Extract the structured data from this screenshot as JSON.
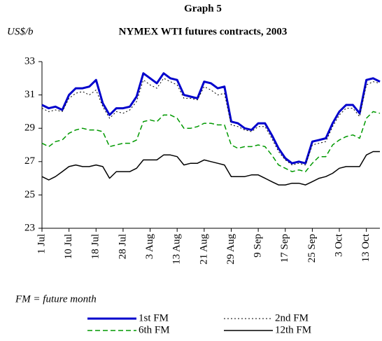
{
  "chart_data": {
    "type": "line",
    "title": "Graph 5",
    "subtitle": "NYMEX WTI futures contracts, 2003",
    "y_axis_label": "US$/b",
    "annotation": "FM = future month",
    "categories": [
      "1 Jul",
      null,
      null,
      null,
      "10 Jul",
      null,
      null,
      null,
      "18 Jul",
      null,
      null,
      null,
      "28 Jul",
      null,
      null,
      null,
      "3 Aug",
      null,
      null,
      null,
      "13 Aug",
      null,
      null,
      null,
      "21 Aug",
      null,
      null,
      null,
      "29 Aug",
      null,
      null,
      null,
      "9 Sep",
      null,
      null,
      null,
      "17 Sep",
      null,
      null,
      null,
      "25 Sep",
      null,
      null,
      null,
      "3 Oct",
      null,
      null,
      null,
      "13 Oct",
      null,
      null
    ],
    "series": [
      {
        "name": "1st FM",
        "color": "#0000cc",
        "width": 3,
        "dash": "none",
        "values": [
          30.4,
          30.2,
          30.3,
          30.1,
          31.0,
          31.4,
          31.4,
          31.5,
          31.9,
          30.5,
          29.8,
          30.2,
          30.2,
          30.3,
          30.9,
          32.3,
          32.0,
          31.7,
          32.3,
          32.0,
          31.9,
          31.0,
          30.9,
          30.8,
          31.8,
          31.7,
          31.4,
          31.5,
          29.4,
          29.3,
          29.0,
          28.9,
          29.3,
          29.3,
          28.6,
          27.8,
          27.2,
          26.9,
          27.0,
          26.9,
          28.2,
          28.3,
          28.4,
          29.3,
          30.0,
          30.4,
          30.4,
          29.9,
          31.9,
          32.0,
          31.8
        ]
      },
      {
        "name": "2nd FM",
        "color": "#000000",
        "width": 1,
        "dash": "2 3",
        "values": [
          30.2,
          30.0,
          30.1,
          30.0,
          30.8,
          31.1,
          31.2,
          31.0,
          31.3,
          30.3,
          29.6,
          30.0,
          29.9,
          30.1,
          30.6,
          31.9,
          31.6,
          31.4,
          32.0,
          31.8,
          31.6,
          30.8,
          30.8,
          30.7,
          31.5,
          31.3,
          31.0,
          31.1,
          29.2,
          29.1,
          28.9,
          28.8,
          29.1,
          29.1,
          28.4,
          27.6,
          27.1,
          26.8,
          26.9,
          26.8,
          28.0,
          28.1,
          28.2,
          29.1,
          29.8,
          30.2,
          30.2,
          29.7,
          31.6,
          31.8,
          31.7
        ]
      },
      {
        "name": "6th FM",
        "color": "#009900",
        "width": 1.5,
        "dash": "7 4",
        "values": [
          28.1,
          27.9,
          28.2,
          28.3,
          28.7,
          28.9,
          29.0,
          28.9,
          28.9,
          28.8,
          27.9,
          28.0,
          28.1,
          28.1,
          28.3,
          29.4,
          29.5,
          29.4,
          29.8,
          29.8,
          29.6,
          29.0,
          29.0,
          29.1,
          29.3,
          29.3,
          29.2,
          29.2,
          28.0,
          27.8,
          27.9,
          27.9,
          28.0,
          27.9,
          27.4,
          26.8,
          26.6,
          26.4,
          26.5,
          26.4,
          26.9,
          27.3,
          27.3,
          28.0,
          28.3,
          28.5,
          28.6,
          28.4,
          29.6,
          30.0,
          29.9
        ]
      },
      {
        "name": "12th FM",
        "color": "#000000",
        "width": 1.5,
        "dash": "none",
        "values": [
          26.1,
          25.9,
          26.1,
          26.4,
          26.7,
          26.8,
          26.7,
          26.7,
          26.8,
          26.7,
          26.0,
          26.4,
          26.4,
          26.4,
          26.6,
          27.1,
          27.1,
          27.1,
          27.4,
          27.4,
          27.3,
          26.8,
          26.9,
          26.9,
          27.1,
          27.0,
          26.9,
          26.8,
          26.1,
          26.1,
          26.1,
          26.2,
          26.2,
          26.0,
          25.8,
          25.6,
          25.6,
          25.7,
          25.7,
          25.6,
          25.8,
          26.0,
          26.1,
          26.3,
          26.6,
          26.7,
          26.7,
          26.7,
          27.4,
          27.6,
          27.6
        ]
      }
    ],
    "ylim": [
      23,
      33
    ],
    "yticks": [
      23,
      25,
      27,
      29,
      31,
      33
    ],
    "grid": false
  }
}
